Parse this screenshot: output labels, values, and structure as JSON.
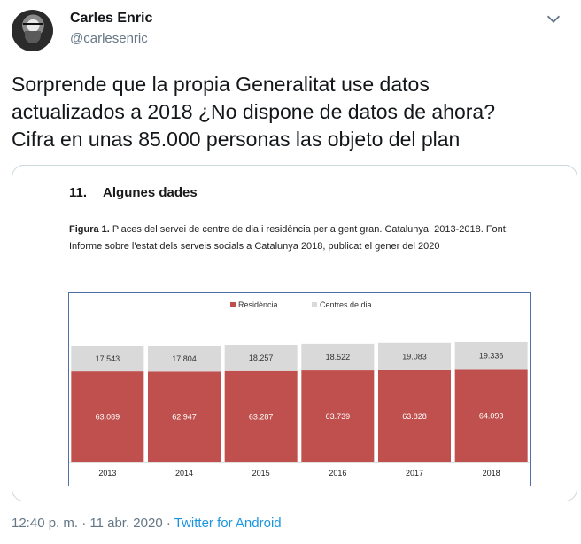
{
  "user": {
    "name": "Carles Enric",
    "handle": "@carlesenric"
  },
  "tweet": {
    "text": "Sorprende que la propia Generalitat use datos\nactualizados a 2018 ¿No dispone de datos de ahora?\nCifra en unas 85.000 personas las objeto del plan"
  },
  "document": {
    "section_number": "11.",
    "section_title": "Algunes dades",
    "figure_label": "Figura 1.",
    "figure_caption": "Places del servei de centre de dia i residència per a gent gran. Catalunya, 2013-2018. Font: Informe sobre l'estat dels serveis socials a Catalunya 2018, publicat el gener del 2020"
  },
  "chart_data": {
    "type": "bar",
    "stacked": true,
    "categories": [
      "2013",
      "2014",
      "2015",
      "2016",
      "2017",
      "2018"
    ],
    "series": [
      {
        "name": "Residència",
        "color": "#c0504d",
        "values": [
          63089,
          62947,
          63287,
          63739,
          63828,
          64093
        ],
        "labels": [
          "63.089",
          "62.947",
          "63.287",
          "63.739",
          "63.828",
          "64.093"
        ]
      },
      {
        "name": "Centres de dia",
        "color": "#d9d9d9",
        "values": [
          17543,
          17804,
          18257,
          18522,
          19083,
          19336
        ],
        "labels": [
          "17.543",
          "17.804",
          "18.257",
          "18.522",
          "19.083",
          "19.336"
        ]
      }
    ],
    "legend_position": "top",
    "grid": false
  },
  "footer": {
    "time": "12:40 p. m. · 11 abr. 2020 · ",
    "source": "Twitter for Android"
  },
  "colors": {
    "link": "#1b95e0",
    "muted": "#657786"
  },
  "icons": {
    "menu": "chevron-down-icon"
  }
}
